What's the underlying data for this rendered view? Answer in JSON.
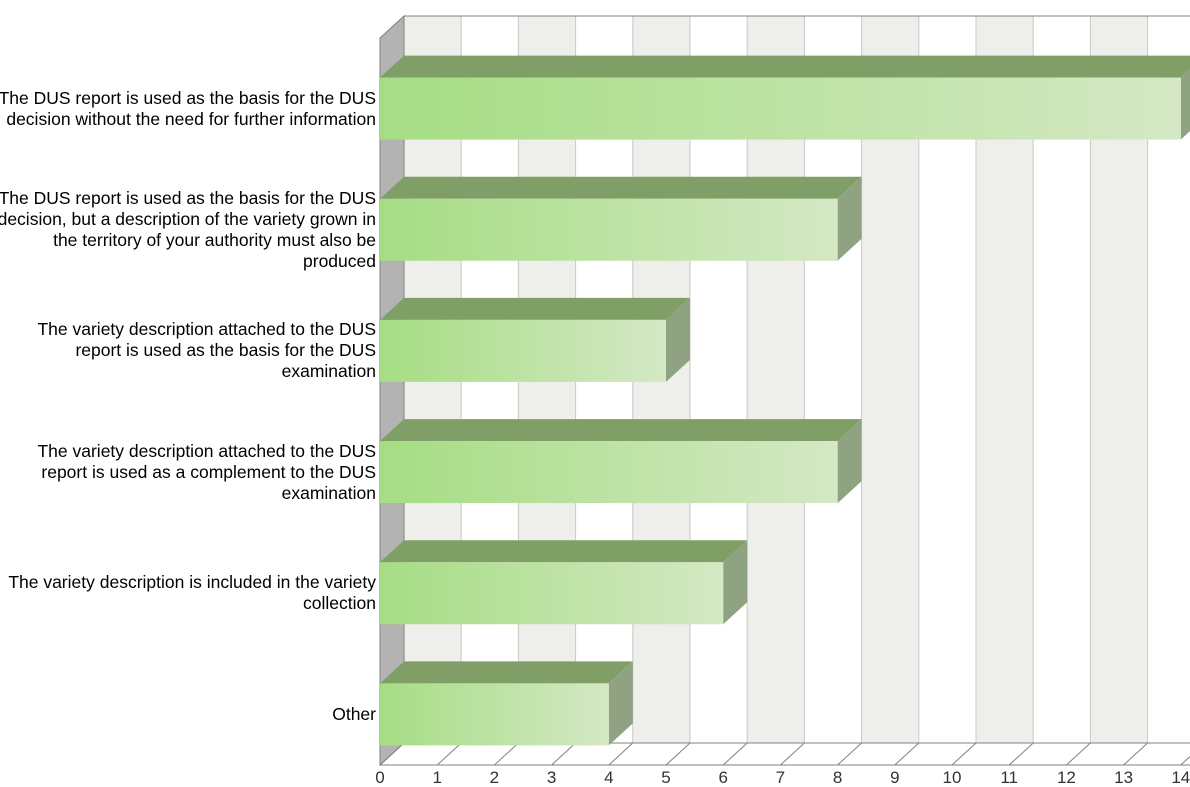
{
  "chart_data": {
    "type": "bar",
    "orientation": "horizontal",
    "three_d": true,
    "categories": [
      "The DUS report is used as the basis for the DUS decision without the need for further information",
      "The DUS report is used as the basis for the DUS decision, but a description of the variety grown in the territory of your authority must also be produced",
      "The variety description attached to the DUS report is used as the basis for the DUS examination",
      "The variety description attached to the DUS report is used as a complement to the DUS examination",
      "The variety description is included in the variety collection",
      "Other"
    ],
    "values": [
      14,
      8,
      5,
      8,
      6,
      4
    ],
    "title": "",
    "xlabel": "",
    "ylabel": "",
    "xlim": [
      0,
      14
    ],
    "x_ticks": [
      "0",
      "1",
      "2",
      "3",
      "4",
      "5",
      "6",
      "7",
      "8",
      "9",
      "10",
      "11",
      "12",
      "13",
      "14"
    ],
    "grid": "alternating vertical bands",
    "legend": "none",
    "colors": {
      "bar_left": "#a6dd84",
      "bar_right": "#d4e8c4",
      "bar_top": "#7f9f66",
      "bar_side": "#8fa383",
      "band_shade": "#eeeeea",
      "wall": "#b3b3b3",
      "gridline": "#c8c8c8",
      "axis": "#808080"
    }
  }
}
